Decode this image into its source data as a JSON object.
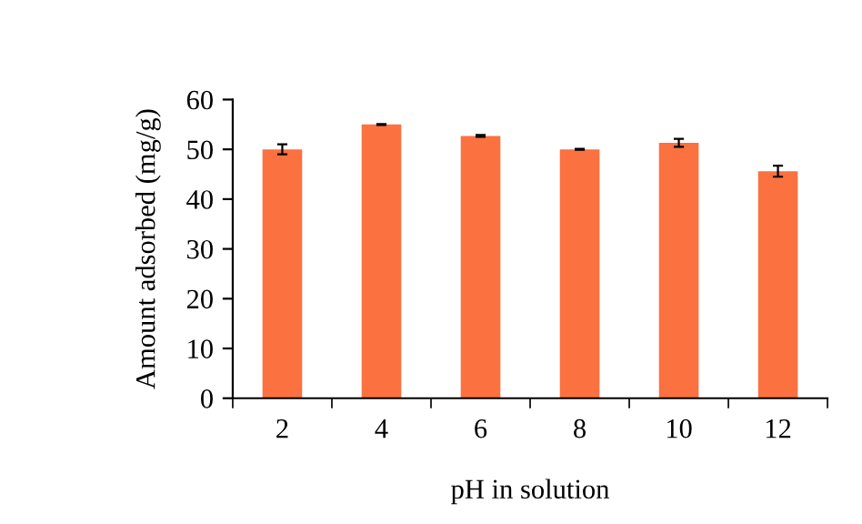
{
  "chart_data": {
    "type": "bar",
    "xlabel": "pH in solution",
    "ylabel": "Amount adsorbed (mg/g)",
    "categories": [
      "2",
      "4",
      "6",
      "8",
      "10",
      "12"
    ],
    "values": [
      50.0,
      55.0,
      52.7,
      50.0,
      51.3,
      45.6
    ],
    "errors": [
      1.0,
      0.1,
      0.2,
      0.1,
      0.8,
      1.1
    ],
    "color": "#fb7140",
    "ylim": [
      0,
      60
    ],
    "yticks": [
      0,
      10,
      20,
      30,
      40,
      50,
      60
    ],
    "grid": false
  }
}
